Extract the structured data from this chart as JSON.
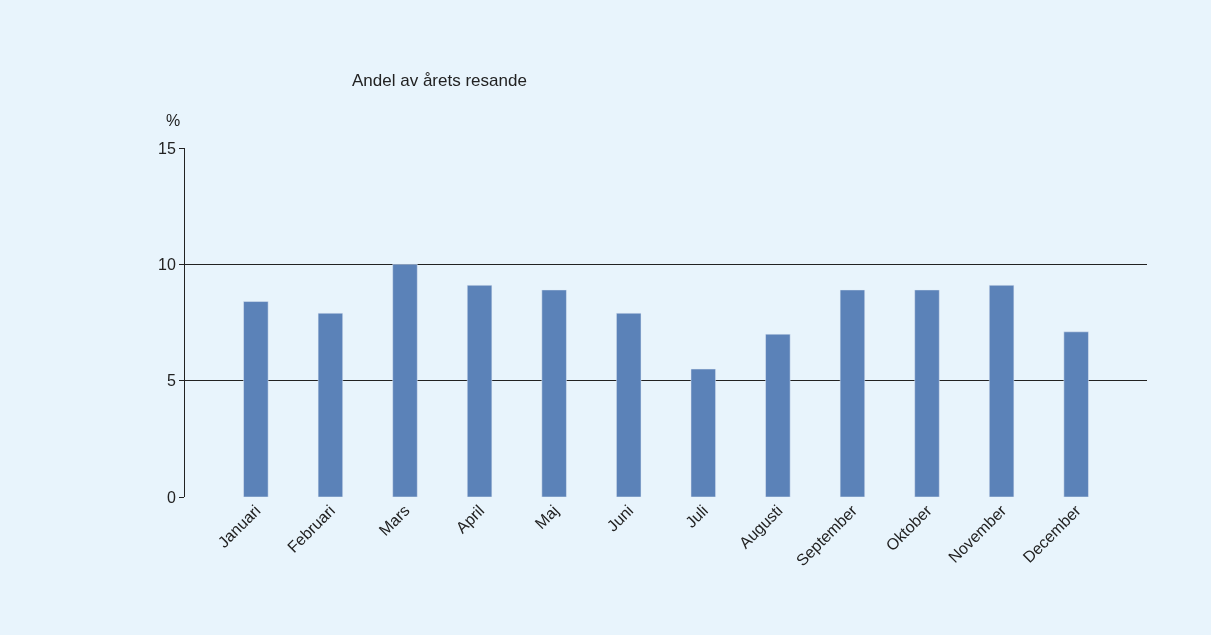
{
  "chart_data": {
    "type": "bar",
    "title": "Andel av årets resande",
    "ylabel": "%",
    "categories": [
      "Januari",
      "Februari",
      "Mars",
      "April",
      "Maj",
      "Juni",
      "Juli",
      "Augusti",
      "September",
      "Oktober",
      "November",
      "December"
    ],
    "values": [
      8.4,
      7.9,
      10.0,
      9.1,
      8.9,
      7.9,
      5.5,
      7.0,
      8.9,
      8.9,
      9.1,
      7.1
    ],
    "color": "#5b82b8",
    "ylim": [
      0,
      15
    ],
    "yticks": [
      0,
      5,
      10,
      15
    ],
    "grid": "y"
  }
}
